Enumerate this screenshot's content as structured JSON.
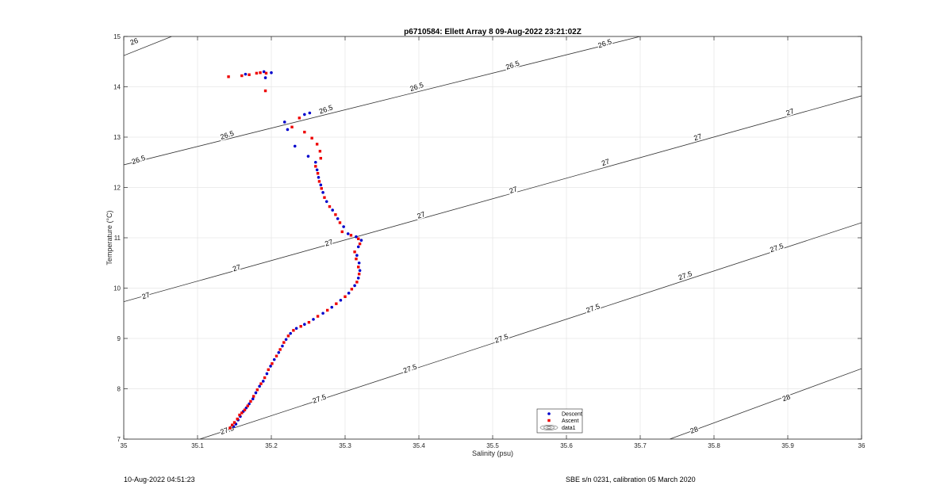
{
  "chart_data": {
    "type": "scatter",
    "title": "p6710584: Ellett Array 8 09-Aug-2022 23:21:02Z",
    "xlabel": "Salinity (psu)",
    "ylabel": "Temperature (°C)",
    "xlim": [
      35,
      36
    ],
    "ylim": [
      7,
      15
    ],
    "xticks": [
      "35",
      "35.1",
      "35.2",
      "35.3",
      "35.4",
      "35.5",
      "35.6",
      "35.7",
      "35.8",
      "35.9",
      "36"
    ],
    "yticks": [
      "7",
      "8",
      "9",
      "10",
      "11",
      "12",
      "13",
      "14",
      "15"
    ],
    "grid": true,
    "legend_placement": "bottom-center",
    "legend": [
      "Descent",
      "Ascent",
      "data1"
    ],
    "series": [
      {
        "name": "Descent",
        "color": "#0000cc",
        "points": [
          [
            35.149,
            7.25
          ],
          [
            35.152,
            7.3
          ],
          [
            35.155,
            7.38
          ],
          [
            35.158,
            7.45
          ],
          [
            35.162,
            7.55
          ],
          [
            35.166,
            7.62
          ],
          [
            35.17,
            7.7
          ],
          [
            35.175,
            7.8
          ],
          [
            35.179,
            7.92
          ],
          [
            35.184,
            8.05
          ],
          [
            35.189,
            8.15
          ],
          [
            35.194,
            8.3
          ],
          [
            35.199,
            8.45
          ],
          [
            35.204,
            8.58
          ],
          [
            35.21,
            8.72
          ],
          [
            35.215,
            8.85
          ],
          [
            35.22,
            8.98
          ],
          [
            35.226,
            9.1
          ],
          [
            35.234,
            9.2
          ],
          [
            35.245,
            9.28
          ],
          [
            35.257,
            9.38
          ],
          [
            35.27,
            9.5
          ],
          [
            35.282,
            9.62
          ],
          [
            35.294,
            9.76
          ],
          [
            35.305,
            9.9
          ],
          [
            35.313,
            10.05
          ],
          [
            35.318,
            10.2
          ],
          [
            35.32,
            10.35
          ],
          [
            35.319,
            10.5
          ],
          [
            35.316,
            10.65
          ],
          [
            35.318,
            10.82
          ],
          [
            35.322,
            10.95
          ],
          [
            35.315,
            11.02
          ],
          [
            35.304,
            11.08
          ],
          [
            35.298,
            11.22
          ],
          [
            35.29,
            11.38
          ],
          [
            35.283,
            11.55
          ],
          [
            35.275,
            11.72
          ],
          [
            35.27,
            11.9
          ],
          [
            35.267,
            12.05
          ],
          [
            35.264,
            12.2
          ],
          [
            35.262,
            12.35
          ],
          [
            35.26,
            12.5
          ],
          [
            35.25,
            12.62
          ],
          [
            35.232,
            12.82
          ],
          [
            35.222,
            13.15
          ],
          [
            35.218,
            13.3
          ],
          [
            35.245,
            13.45
          ],
          [
            35.252,
            13.48
          ],
          [
            35.192,
            14.18
          ],
          [
            35.165,
            14.25
          ],
          [
            35.19,
            14.3
          ],
          [
            35.2,
            14.28
          ]
        ]
      },
      {
        "name": "Ascent",
        "color": "#ee0000",
        "points": [
          [
            35.144,
            7.22
          ],
          [
            35.147,
            7.28
          ],
          [
            35.15,
            7.33
          ],
          [
            35.154,
            7.4
          ],
          [
            35.157,
            7.48
          ],
          [
            35.16,
            7.52
          ],
          [
            35.164,
            7.58
          ],
          [
            35.168,
            7.66
          ],
          [
            35.172,
            7.75
          ],
          [
            35.176,
            7.85
          ],
          [
            35.181,
            7.98
          ],
          [
            35.186,
            8.1
          ],
          [
            35.191,
            8.22
          ],
          [
            35.196,
            8.38
          ],
          [
            35.201,
            8.5
          ],
          [
            35.207,
            8.65
          ],
          [
            35.212,
            8.78
          ],
          [
            35.217,
            8.92
          ],
          [
            35.223,
            9.05
          ],
          [
            35.23,
            9.16
          ],
          [
            35.24,
            9.24
          ],
          [
            35.251,
            9.32
          ],
          [
            35.263,
            9.44
          ],
          [
            35.276,
            9.56
          ],
          [
            35.288,
            9.69
          ],
          [
            35.3,
            9.83
          ],
          [
            35.309,
            9.98
          ],
          [
            35.316,
            10.12
          ],
          [
            35.319,
            10.28
          ],
          [
            35.318,
            10.42
          ],
          [
            35.315,
            10.58
          ],
          [
            35.313,
            10.72
          ],
          [
            35.32,
            10.88
          ],
          [
            35.318,
            10.98
          ],
          [
            35.308,
            11.05
          ],
          [
            35.296,
            11.12
          ],
          [
            35.293,
            11.3
          ],
          [
            35.287,
            11.46
          ],
          [
            35.279,
            11.62
          ],
          [
            35.272,
            11.8
          ],
          [
            35.268,
            11.98
          ],
          [
            35.265,
            12.12
          ],
          [
            35.263,
            12.28
          ],
          [
            35.26,
            12.42
          ],
          [
            35.267,
            12.58
          ],
          [
            35.266,
            12.72
          ],
          [
            35.262,
            12.86
          ],
          [
            35.255,
            12.98
          ],
          [
            35.245,
            13.1
          ],
          [
            35.228,
            13.2
          ],
          [
            35.238,
            13.38
          ],
          [
            35.142,
            14.2
          ],
          [
            35.16,
            14.22
          ],
          [
            35.17,
            14.24
          ],
          [
            35.18,
            14.27
          ],
          [
            35.185,
            14.28
          ],
          [
            35.193,
            14.27
          ],
          [
            35.192,
            13.92
          ]
        ]
      }
    ],
    "contours": [
      {
        "label": "26",
        "p1": [
          35,
          14.62
        ],
        "p2": [
          35.065,
          15
        ]
      },
      {
        "label": "26.5",
        "p1": [
          35,
          12.45
        ],
        "p2": [
          35.7,
          15
        ]
      },
      {
        "label": "27",
        "p1": [
          35,
          9.73
        ],
        "p2": [
          36,
          13.82
        ]
      },
      {
        "label": "27.5",
        "p1": [
          35.103,
          7
        ],
        "p2": [
          36,
          11.3
        ]
      },
      {
        "label": "28",
        "p1": [
          35.74,
          7
        ],
        "p2": [
          36,
          8.4
        ]
      }
    ],
    "contour_labels": [
      {
        "text": "26",
        "x": 35.014,
        "y": 14.9
      },
      {
        "text": "26.5",
        "x": 35.02,
        "y": 12.55
      },
      {
        "text": "26.5",
        "x": 35.14,
        "y": 13.04
      },
      {
        "text": "26.5",
        "x": 35.274,
        "y": 13.55
      },
      {
        "text": "26.5",
        "x": 35.397,
        "y": 14.0
      },
      {
        "text": "26.5",
        "x": 35.527,
        "y": 14.43
      },
      {
        "text": "26.5",
        "x": 35.652,
        "y": 14.86
      },
      {
        "text": "27",
        "x": 35.03,
        "y": 9.85
      },
      {
        "text": "27",
        "x": 35.153,
        "y": 10.4
      },
      {
        "text": "27",
        "x": 35.278,
        "y": 10.9
      },
      {
        "text": "27",
        "x": 35.403,
        "y": 11.45
      },
      {
        "text": "27",
        "x": 35.528,
        "y": 11.95
      },
      {
        "text": "27",
        "x": 35.653,
        "y": 12.5
      },
      {
        "text": "27",
        "x": 35.778,
        "y": 13.0
      },
      {
        "text": "27",
        "x": 35.903,
        "y": 13.5
      },
      {
        "text": "27.5",
        "x": 35.14,
        "y": 7.18
      },
      {
        "text": "27.5",
        "x": 35.265,
        "y": 7.8
      },
      {
        "text": "27.5",
        "x": 35.388,
        "y": 8.4
      },
      {
        "text": "27.5",
        "x": 35.512,
        "y": 9.0
      },
      {
        "text": "27.5",
        "x": 35.636,
        "y": 9.6
      },
      {
        "text": "27.5",
        "x": 35.761,
        "y": 10.25
      },
      {
        "text": "27.5",
        "x": 35.885,
        "y": 10.8
      },
      {
        "text": "28",
        "x": 35.773,
        "y": 7.18
      },
      {
        "text": "28",
        "x": 35.898,
        "y": 7.82
      }
    ]
  },
  "footer": {
    "left": "10-Aug-2022 04:51:23",
    "right": "SBE s/n 0231, calibration 05 March 2020"
  }
}
